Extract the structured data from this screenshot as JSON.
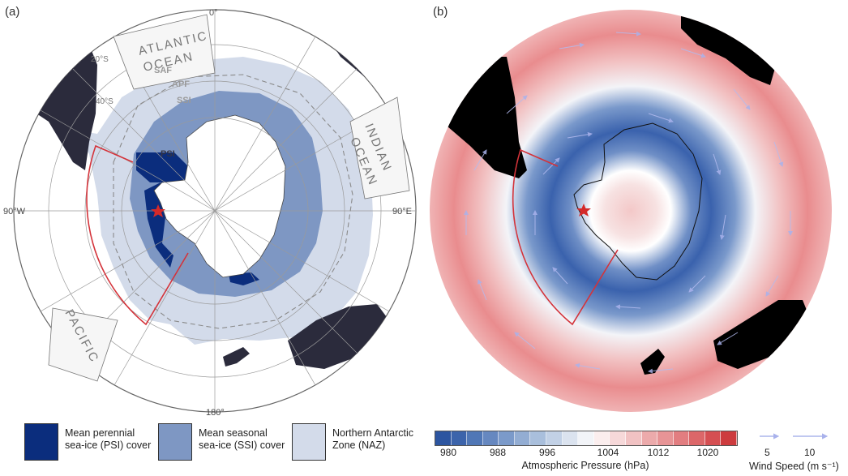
{
  "panels": {
    "a": {
      "label": "(a)",
      "longitudes": {
        "top": "0°",
        "left": "90°W",
        "right": "90°E",
        "bottom": "180°"
      },
      "latitudes": [
        "20°S",
        "40°S"
      ],
      "oceans": {
        "atlantic": [
          "ATLANTIC",
          "OCEAN"
        ],
        "indian": [
          "INDIAN",
          "OCEAN"
        ],
        "pacific": [
          "PACIFIC"
        ]
      },
      "fronts": {
        "saf": "SAF",
        "apf": "APF",
        "ssi": "SSI",
        "psi": "PSI"
      }
    },
    "b": {
      "label": "(b)"
    }
  },
  "legend": {
    "items": [
      {
        "label_line1": "Mean perennial",
        "label_line2": "sea-ice (PSI) cover",
        "color": "#0b2d7d"
      },
      {
        "label_line1": "Mean seasonal",
        "label_line2": "sea-ice (SSI) cover",
        "color": "#7e97c3"
      },
      {
        "label_line1": "Northern Antarctic",
        "label_line2": "Zone (NAZ)",
        "color": "#d3dbea"
      }
    ],
    "pressure": {
      "title": "Atmospheric Pressure (hPa)",
      "ticks": [
        "980",
        "988",
        "996",
        "1004",
        "1012",
        "1020"
      ],
      "colors": [
        "#2c55a0",
        "#3c64ab",
        "#5077b6",
        "#6688c0",
        "#7b9aca",
        "#93add3",
        "#a9bfdc",
        "#c2d1e6",
        "#dbe3ef",
        "#f2f4f8",
        "#fbeeee",
        "#f6d8d9",
        "#f1c2c3",
        "#ecaaab",
        "#e79496",
        "#e27d80",
        "#dc6769",
        "#d54f52",
        "#cd3b3e"
      ]
    },
    "wind": {
      "title": "Wind Speed (m s⁻¹)",
      "ticks": [
        "5",
        "10"
      ],
      "arrow_color": "#9aa6e8"
    }
  }
}
